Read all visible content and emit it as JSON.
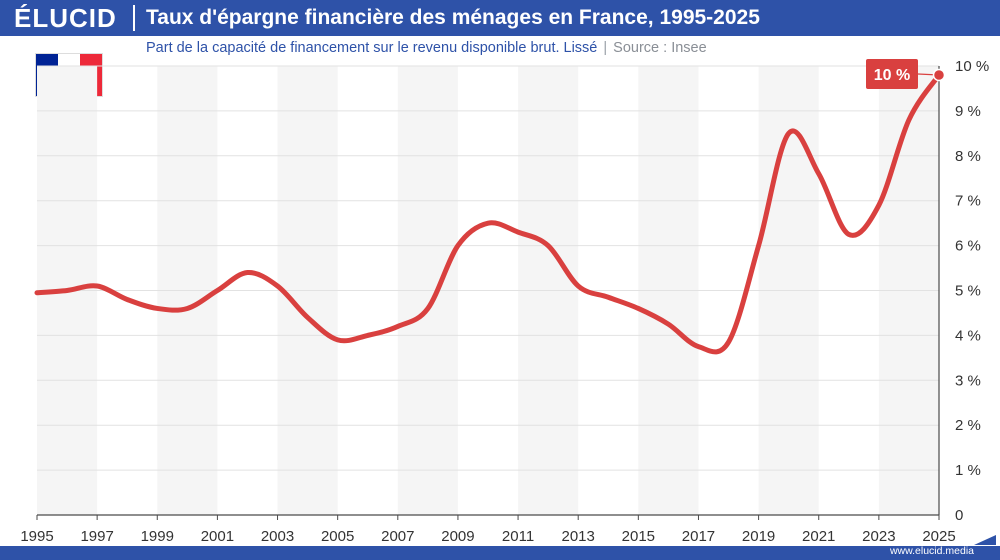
{
  "header": {
    "brand": "ÉLUCID",
    "title": "Taux d'épargne financière des ménages en France, 1995-2025",
    "subtitle": "Part de la capacité de financement sur le revenu disponible brut. Lissé",
    "source": "Source : Insee"
  },
  "footer": {
    "url": "www.elucid.media"
  },
  "colors": {
    "header_bg": "#2e52a8",
    "line": "#d9403f",
    "band": "#f5f5f5",
    "grid": "#e2e2e2",
    "flag_blue": "#002395",
    "flag_white": "#ffffff",
    "flag_red": "#ed2939"
  },
  "icons": {
    "flag": "france-flag-icon"
  },
  "chart_data": {
    "type": "line",
    "title": "Taux d'épargne financière des ménages en France, 1995-2025",
    "subtitle": "Part de la capacité de financement sur le revenu disponible brut. Lissé",
    "xlabel": "",
    "ylabel": "",
    "xlim": [
      1995,
      2025
    ],
    "ylim": [
      0,
      10
    ],
    "x_ticks": [
      "1995",
      "1997",
      "1999",
      "2001",
      "2003",
      "2005",
      "2007",
      "2009",
      "2011",
      "2013",
      "2015",
      "2017",
      "2019",
      "2021",
      "2023",
      "2025"
    ],
    "y_ticks": [
      "0",
      "1 %",
      "2 %",
      "3 %",
      "4 %",
      "5 %",
      "6 %",
      "7 %",
      "8 %",
      "9 %",
      "10 %"
    ],
    "y_axis_position": "right",
    "grid": true,
    "alternating_bands": true,
    "series": [
      {
        "x": [
          1995,
          1996,
          1997,
          1998,
          1999,
          2000,
          2001,
          2002,
          2003,
          2004,
          2005,
          2006,
          2007,
          2008,
          2009,
          2010,
          2011,
          2012,
          2013,
          2014,
          2015,
          2016,
          2017,
          2018,
          2019,
          2020,
          2021,
          2022,
          2023,
          2024,
          2025
        ],
        "values": [
          4.95,
          5.0,
          5.1,
          4.8,
          4.6,
          4.6,
          5.0,
          5.4,
          5.1,
          4.4,
          3.9,
          4.0,
          4.2,
          4.6,
          6.0,
          6.5,
          6.3,
          6.0,
          5.1,
          4.85,
          4.6,
          4.25,
          3.75,
          3.85,
          6.0,
          8.5,
          7.6,
          6.25,
          6.9,
          8.8,
          9.8
        ]
      }
    ],
    "annotation": {
      "label": "10 %",
      "x": 2025,
      "y": 9.8
    }
  }
}
